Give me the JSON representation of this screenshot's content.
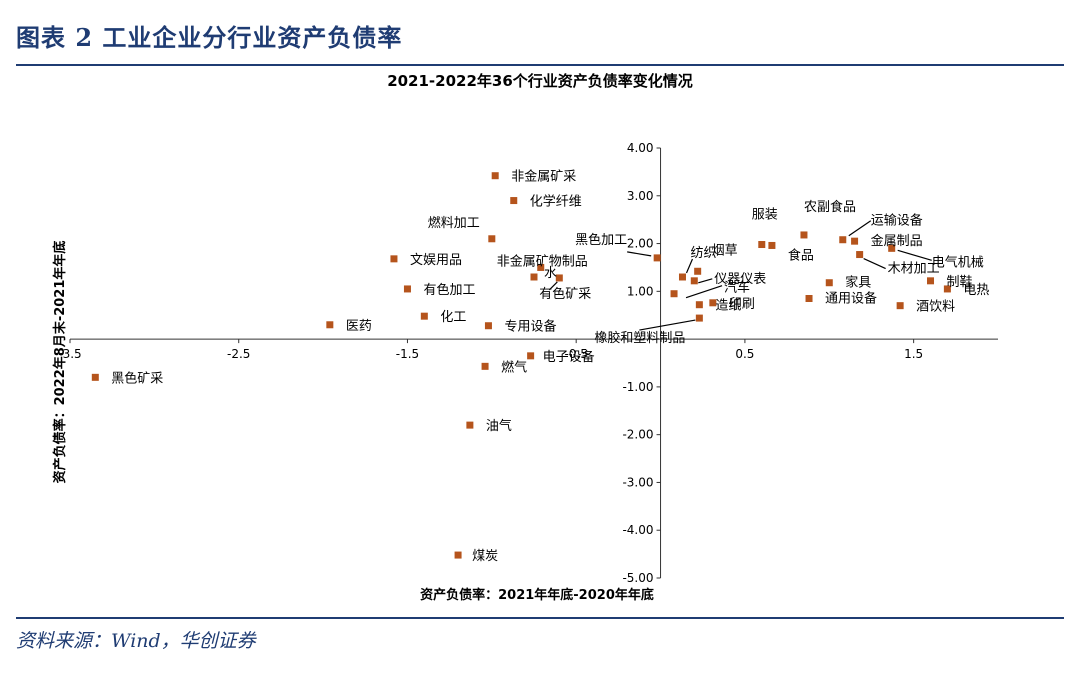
{
  "figure_title": "图表 2    工业企业分行业资产负债率",
  "source": "资料来源：Wind，华创证券",
  "chart_data": {
    "type": "scatter",
    "title": "2021-2022年36个行业资产负债率变化情况",
    "xlabel": "资产负债率：2021年年底-2020年年底",
    "ylabel": "资产负债率：2022年8月末-2021年年底",
    "xlim": [
      -3.5,
      2.0
    ],
    "ylim": [
      -5.0,
      4.0
    ],
    "x_ticks": [
      "-3.5",
      "-2.5",
      "-1.5",
      "-0.5",
      "0.5",
      "1.5"
    ],
    "y_ticks": [
      "4.00",
      "3.00",
      "2.00",
      "1.00",
      "-1.00",
      "-2.00",
      "-3.00",
      "-4.00",
      "-5.00"
    ],
    "marker_color": "#b5541c",
    "points": [
      {
        "label": "黑色矿采",
        "x": -3.35,
        "y": -0.8
      },
      {
        "label": "医药",
        "x": -1.96,
        "y": 0.3
      },
      {
        "label": "文娱用品",
        "x": -1.58,
        "y": 1.68
      },
      {
        "label": "有色加工",
        "x": -1.5,
        "y": 1.05
      },
      {
        "label": "化工",
        "x": -1.4,
        "y": 0.48
      },
      {
        "label": "燃料加工",
        "x": -1.0,
        "y": 2.1
      },
      {
        "label": "专用设备",
        "x": -1.02,
        "y": 0.28
      },
      {
        "label": "非金属矿采",
        "x": -0.98,
        "y": 3.42
      },
      {
        "label": "化学纤维",
        "x": -0.87,
        "y": 2.9
      },
      {
        "label": "黑色加工",
        "x": -0.02,
        "y": 1.7
      },
      {
        "label": "非金属矿物制品",
        "x": -0.71,
        "y": 1.5
      },
      {
        "label": "水",
        "x": -0.75,
        "y": 1.3
      },
      {
        "label": "有色矿采",
        "x": -0.6,
        "y": 1.28
      },
      {
        "label": "电子设备",
        "x": -0.77,
        "y": -0.35
      },
      {
        "label": "燃气",
        "x": -1.04,
        "y": -0.57
      },
      {
        "label": "油气",
        "x": -1.13,
        "y": -1.8
      },
      {
        "label": "煤炭",
        "x": -1.2,
        "y": -4.52
      },
      {
        "label": "纺织",
        "x": 0.13,
        "y": 1.3
      },
      {
        "label": "烟草",
        "x": 0.22,
        "y": 1.42
      },
      {
        "label": "仪器仪表",
        "x": 0.2,
        "y": 1.22
      },
      {
        "label": "汽车",
        "x": 0.08,
        "y": 0.95
      },
      {
        "label": "印刷",
        "x": 0.31,
        "y": 0.76
      },
      {
        "label": "造纸",
        "x": 0.23,
        "y": 0.72
      },
      {
        "label": "橡胶和塑料制品",
        "x": 0.23,
        "y": 0.44
      },
      {
        "label": "服装",
        "x": 0.6,
        "y": 1.98
      },
      {
        "label": "食品",
        "x": 0.66,
        "y": 1.96
      },
      {
        "label": "农副食品",
        "x": 0.85,
        "y": 2.18
      },
      {
        "label": "运输设备",
        "x": 1.08,
        "y": 2.08
      },
      {
        "label": "金属制品",
        "x": 1.15,
        "y": 2.05
      },
      {
        "label": "电气机械",
        "x": 1.37,
        "y": 1.9
      },
      {
        "label": "木材加工",
        "x": 1.18,
        "y": 1.77
      },
      {
        "label": "家具",
        "x": 1.0,
        "y": 1.18
      },
      {
        "label": "通用设备",
        "x": 0.88,
        "y": 0.85
      },
      {
        "label": "酒饮料",
        "x": 1.42,
        "y": 0.7
      },
      {
        "label": "制鞋",
        "x": 1.6,
        "y": 1.22
      },
      {
        "label": "电热",
        "x": 1.7,
        "y": 1.05
      }
    ]
  }
}
